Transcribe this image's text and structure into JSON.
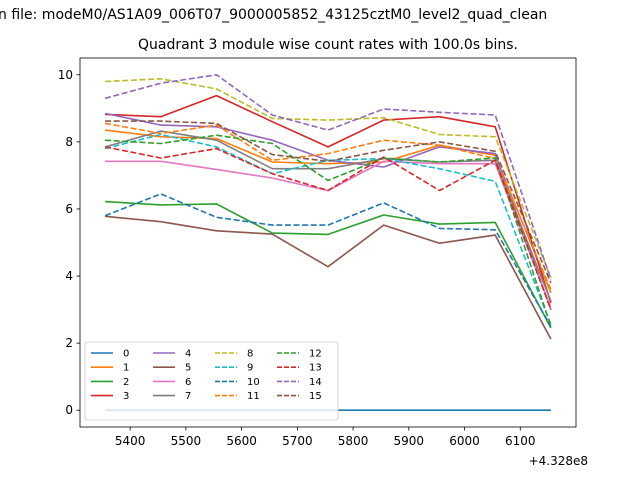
{
  "chart_data": {
    "type": "line",
    "suptitle": "n file: modeM0/AS1A09_006T07_9000005852_43125cztM0_level2_quad_clean",
    "title": "Quadrant 3 module wise count rates with 100.0s bins.",
    "xlabel": "",
    "ylabel": "",
    "x_offset_label": "+4.328e8",
    "x": [
      5355,
      5455,
      5555,
      5655,
      5755,
      5855,
      5955,
      6055,
      6155
    ],
    "xlim": [
      5310,
      6200
    ],
    "ylim": [
      -0.5,
      10.5
    ],
    "x_ticks": [
      5400,
      5500,
      5600,
      5700,
      5800,
      5900,
      6000,
      6100
    ],
    "y_ticks": [
      0,
      2,
      4,
      6,
      8,
      10
    ],
    "grid": false,
    "legend_position": "lower-left",
    "legend_columns": 4,
    "series": [
      {
        "name": "0",
        "color": "#1f77b4",
        "dash": "solid",
        "values": [
          0,
          0,
          0,
          0,
          0,
          0,
          0,
          0,
          0
        ]
      },
      {
        "name": "1",
        "color": "#ff7f0e",
        "dash": "solid",
        "values": [
          8.35,
          8.15,
          8.1,
          7.4,
          7.35,
          7.4,
          7.9,
          7.6,
          3.5
        ]
      },
      {
        "name": "2",
        "color": "#2ca02c",
        "dash": "solid",
        "values": [
          6.22,
          6.12,
          6.15,
          5.28,
          5.24,
          5.82,
          5.55,
          5.6,
          2.45
        ]
      },
      {
        "name": "3",
        "color": "#d62728",
        "dash": "solid",
        "values": [
          8.82,
          8.75,
          9.38,
          8.6,
          7.85,
          8.65,
          8.75,
          8.45,
          3.2
        ]
      },
      {
        "name": "4",
        "color": "#9467bd",
        "dash": "solid",
        "values": [
          8.85,
          8.5,
          8.45,
          8.05,
          7.45,
          7.25,
          7.85,
          7.65,
          3.0
        ]
      },
      {
        "name": "5",
        "color": "#8c564b",
        "dash": "solid",
        "values": [
          5.78,
          5.62,
          5.35,
          5.25,
          4.28,
          5.52,
          4.98,
          5.22,
          2.12
        ]
      },
      {
        "name": "6",
        "color": "#e377c2",
        "dash": "solid",
        "values": [
          7.42,
          7.42,
          7.18,
          6.92,
          6.55,
          7.42,
          7.35,
          7.35,
          3.05
        ]
      },
      {
        "name": "7",
        "color": "#7f7f7f",
        "dash": "solid",
        "values": [
          7.85,
          8.32,
          8.05,
          7.2,
          7.2,
          7.5,
          7.4,
          7.45,
          3.25
        ]
      },
      {
        "name": "8",
        "color": "#bcbd22",
        "dash": "dashed",
        "values": [
          9.8,
          9.88,
          9.58,
          8.7,
          8.65,
          8.72,
          8.22,
          8.15,
          3.95
        ]
      },
      {
        "name": "9",
        "color": "#17becf",
        "dash": "dashed",
        "values": [
          7.8,
          8.22,
          7.85,
          7.05,
          7.45,
          7.5,
          7.2,
          6.82,
          2.55
        ]
      },
      {
        "name": "10",
        "color": "#1f77b4",
        "dash": "dashed",
        "values": [
          5.8,
          6.45,
          5.75,
          5.52,
          5.52,
          6.18,
          5.42,
          5.38,
          2.5
        ]
      },
      {
        "name": "11",
        "color": "#ff7f0e",
        "dash": "dashed",
        "values": [
          8.55,
          8.25,
          8.5,
          7.45,
          7.65,
          8.05,
          7.9,
          7.5,
          3.6
        ]
      },
      {
        "name": "12",
        "color": "#2ca02c",
        "dash": "dashed",
        "values": [
          8.05,
          7.95,
          8.2,
          7.95,
          6.85,
          7.52,
          7.4,
          7.52,
          2.5
        ]
      },
      {
        "name": "13",
        "color": "#d62728",
        "dash": "dashed",
        "values": [
          7.85,
          7.52,
          7.8,
          7.05,
          6.55,
          7.55,
          6.55,
          7.45,
          3.0
        ]
      },
      {
        "name": "14",
        "color": "#9467bd",
        "dash": "dashed",
        "values": [
          9.3,
          9.75,
          10.0,
          8.8,
          8.35,
          8.98,
          8.88,
          8.8,
          3.9
        ]
      },
      {
        "name": "15",
        "color": "#8c564b",
        "dash": "dashed",
        "values": [
          8.62,
          8.62,
          8.55,
          7.62,
          7.42,
          7.75,
          8.0,
          7.72,
          3.8
        ]
      }
    ]
  }
}
